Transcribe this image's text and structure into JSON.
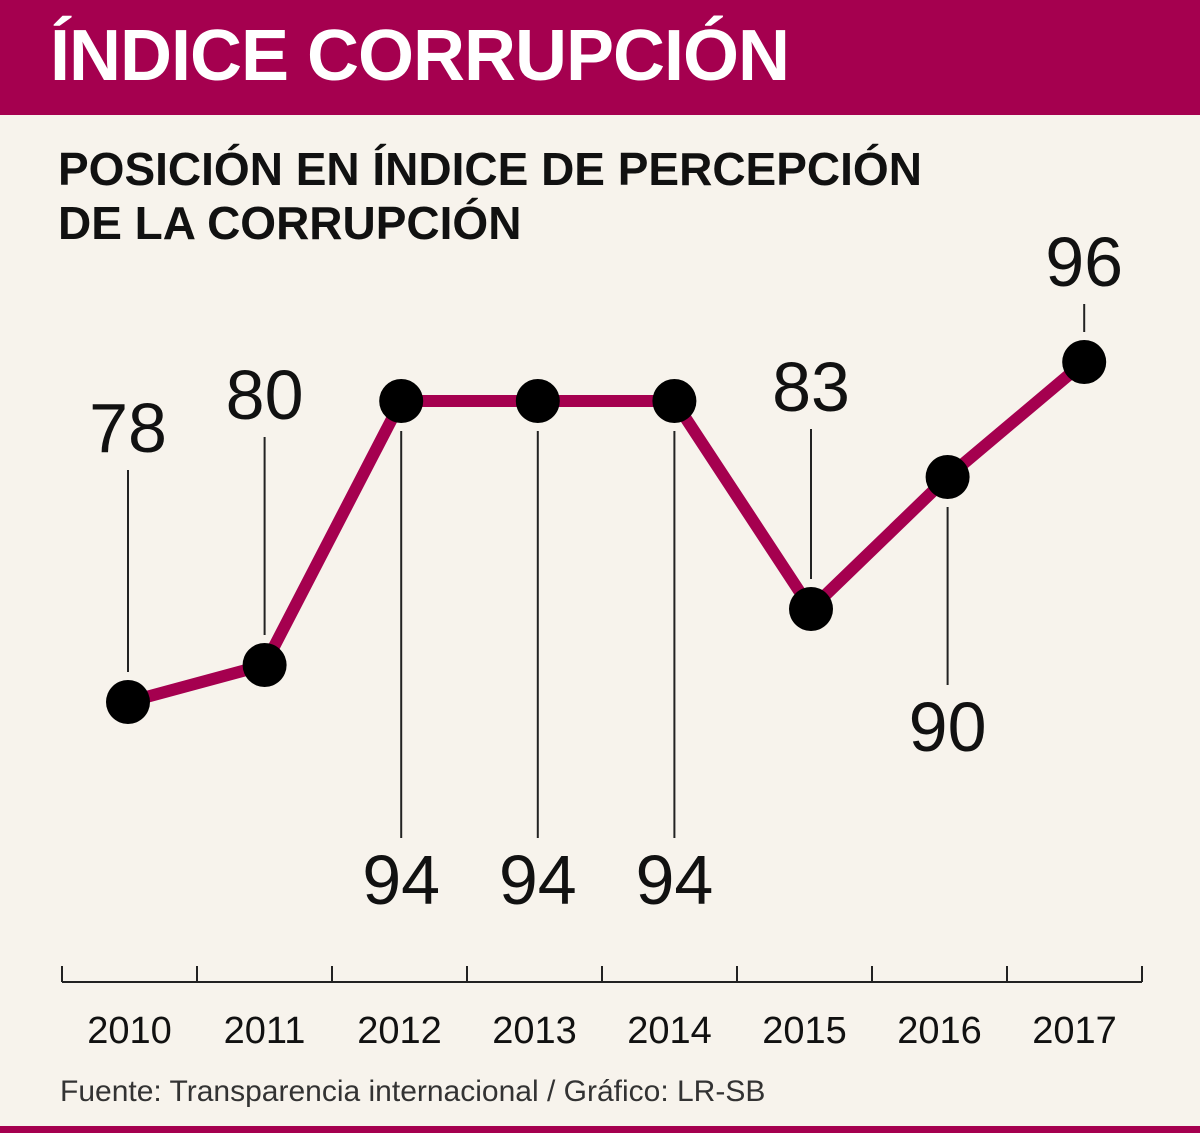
{
  "header": {
    "title": "ÍNDICE CORRUPCIÓN",
    "subtitle_line1": "POSICIÓN EN ÍNDICE DE PERCEPCIÓN",
    "subtitle_line2": "DE LA CORRUPCIÓN"
  },
  "chart_data": {
    "type": "line",
    "title": "POSICIÓN EN ÍNDICE DE PERCEPCIÓN DE LA CORRUPCIÓN",
    "categories": [
      "2010",
      "2011",
      "2012",
      "2013",
      "2014",
      "2015",
      "2016",
      "2017"
    ],
    "series": [
      {
        "name": "Posición",
        "values": [
          78,
          80,
          94,
          94,
          94,
          83,
          90,
          96
        ]
      }
    ],
    "xlabel": "",
    "ylabel": "",
    "grid": false,
    "legend": false
  },
  "colors": {
    "brand": "#a5004f",
    "line": "#a5004f",
    "marker": "#000000",
    "background": "#f7f3ec",
    "text": "#111111"
  },
  "footer": {
    "source": "Fuente: Transparencia internacional  / Gráfico: LR-SB"
  }
}
